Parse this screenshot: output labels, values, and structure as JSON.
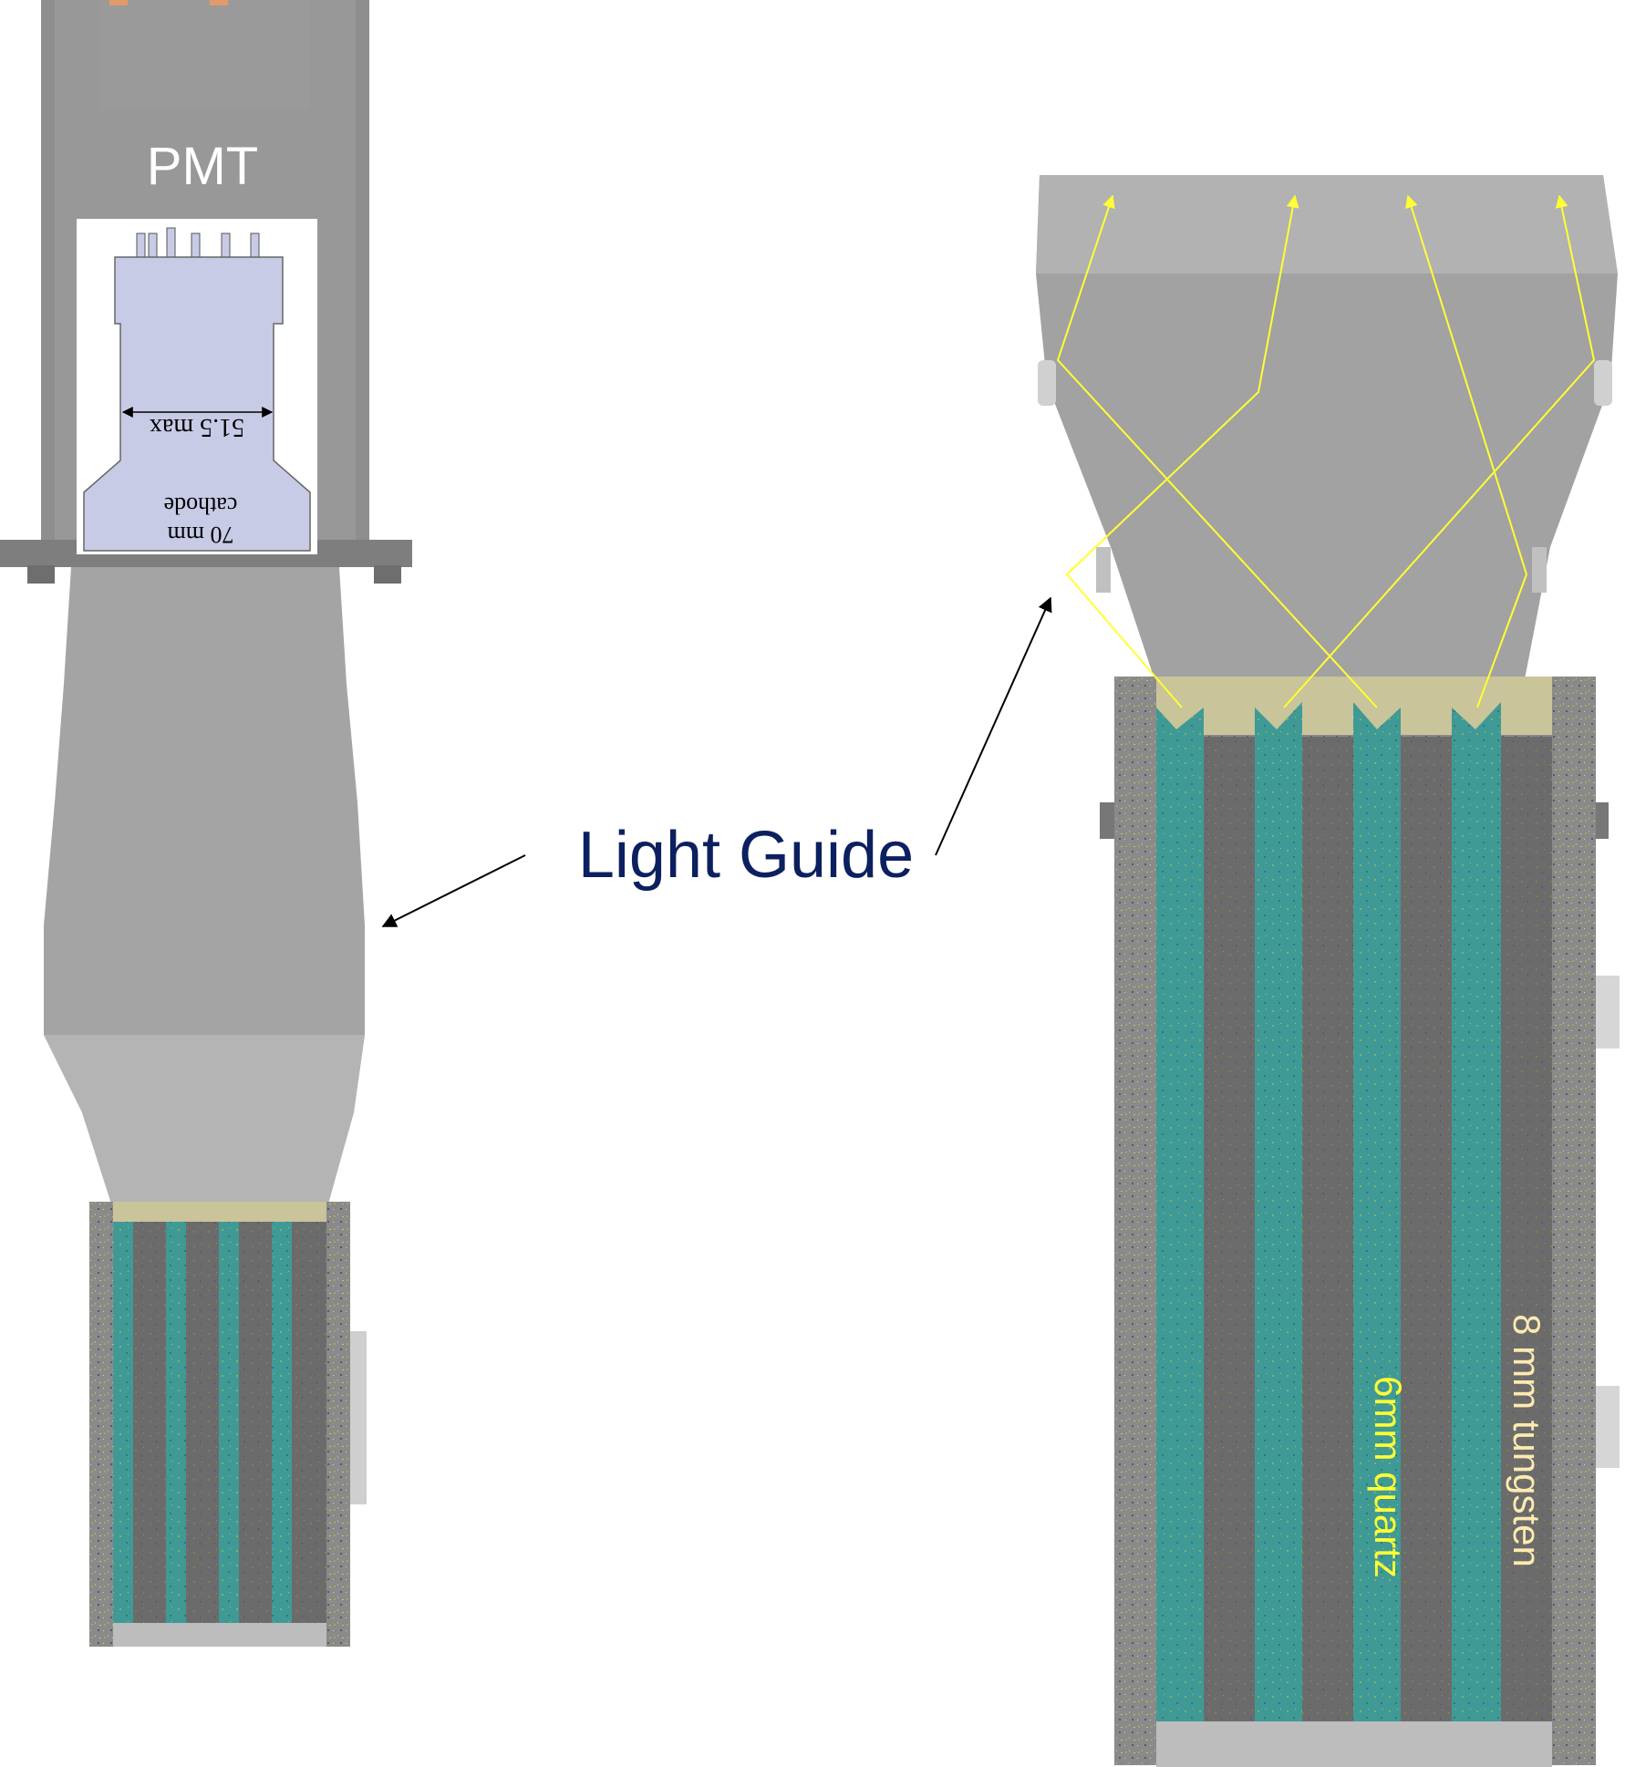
{
  "labels": {
    "pmt": "PMT",
    "dimension": "51.5 max",
    "cathode_line1": "70 mm",
    "cathode_line2": "cathode",
    "light_guide": "Light Guide",
    "quartz": "6mm quartz",
    "tungsten": "8 mm tungsten"
  },
  "colors": {
    "housing": "#8e8e8e",
    "light_guide": "#9e9e9e",
    "pmt_tube": "#c8cbe6",
    "coupling": "#c9c49a",
    "quartz": "#3f9a96",
    "tungsten": "#6b6b6b",
    "frame": "#8a8a8a",
    "ray": "#ffff33",
    "label_dark_blue": "#0c2060",
    "label_quartz": "#ffff33",
    "label_tungsten": "#fdeab0"
  }
}
